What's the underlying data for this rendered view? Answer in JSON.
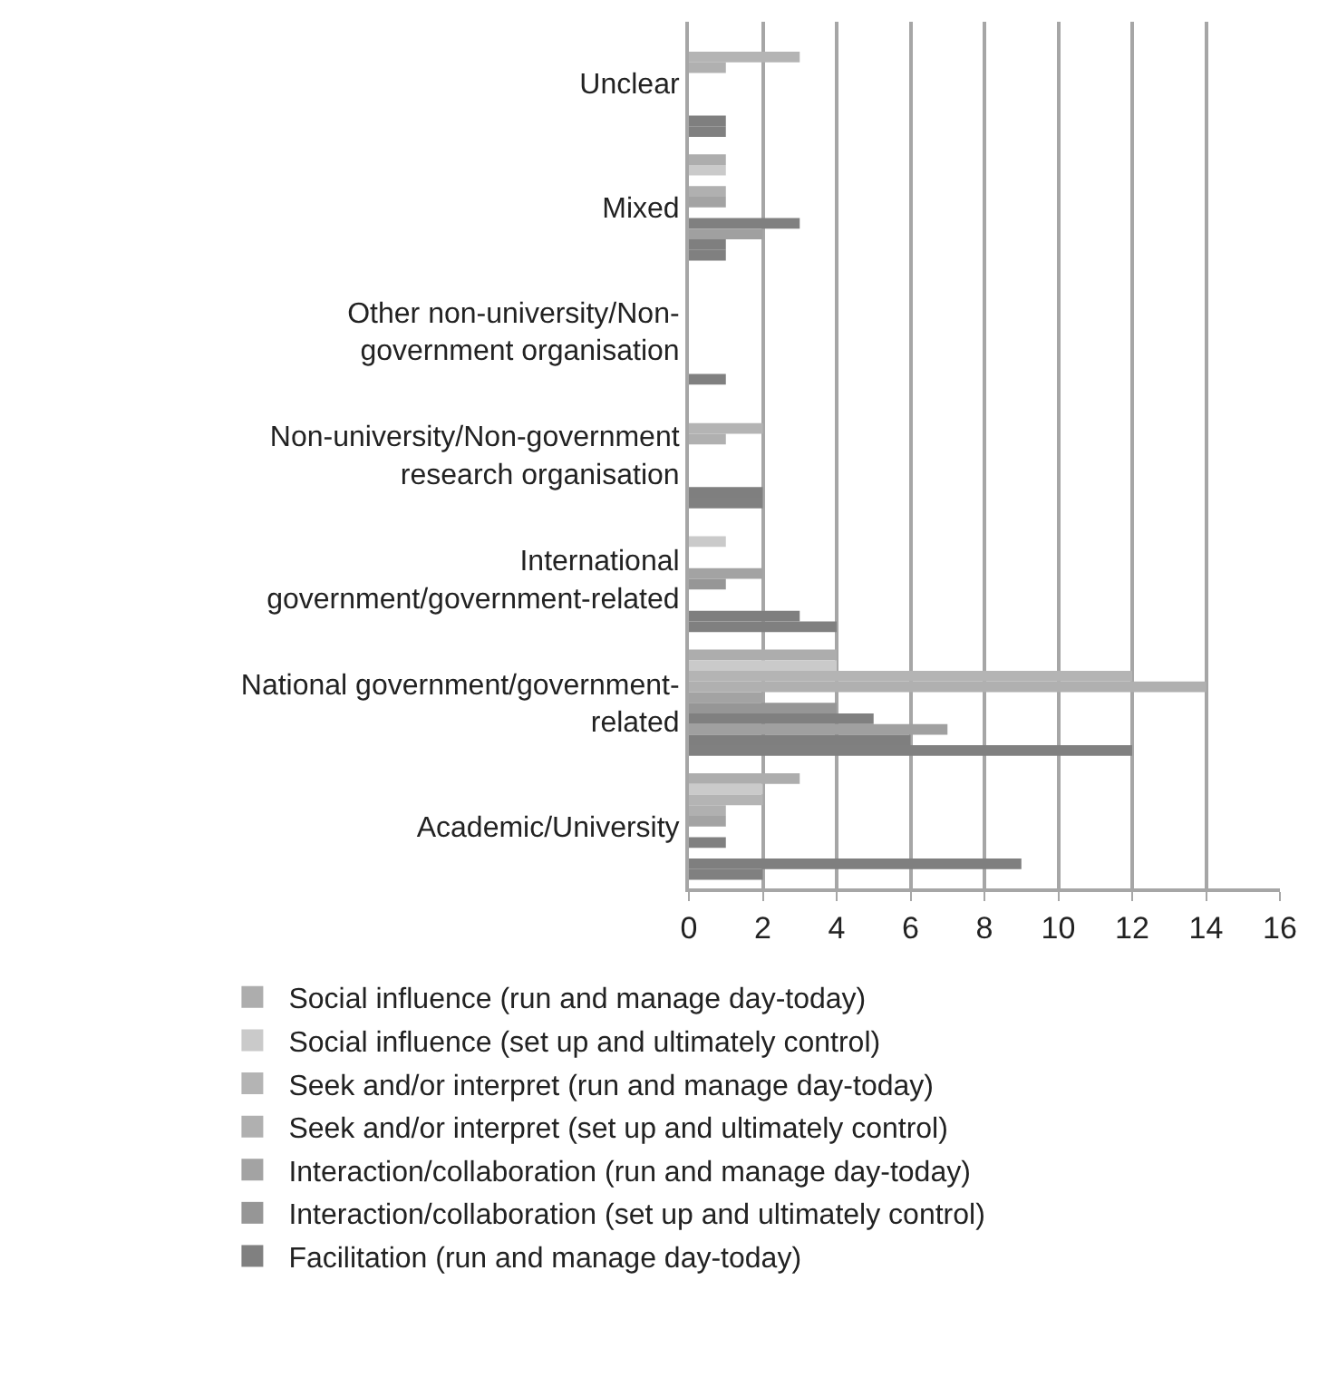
{
  "chart_data": {
    "type": "bar",
    "orientation": "horizontal",
    "categories": [
      "Unclear",
      "Mixed",
      "Other non-university/Non-government organisation",
      "Non-university/Non-government research organisation",
      "International government/government-related",
      "National government/government-related",
      "Academic/University"
    ],
    "series": [
      {
        "name": "Social influence (run and manage day-today)",
        "color": "#adadad",
        "values": [
          0,
          1,
          0,
          0,
          0,
          4,
          3
        ]
      },
      {
        "name": "Social influence (set up and ultimately control)",
        "color": "#cacaca",
        "values": [
          0,
          1,
          0,
          0,
          1,
          4,
          2
        ]
      },
      {
        "name": "Seek and/or interpret (run and manage day-today)",
        "color": "#b4b4b4",
        "values": [
          3,
          0,
          0,
          2,
          0,
          12,
          2
        ]
      },
      {
        "name": "Seek and/or interpret (set up and ultimately control)",
        "color": "#b0b0b0",
        "values": [
          1,
          1,
          0,
          1,
          0,
          14,
          1
        ]
      },
      {
        "name": "Interaction/collaboration (run and manage day-today)",
        "color": "#a3a3a3",
        "values": [
          0,
          1,
          0,
          0,
          2,
          2,
          1
        ]
      },
      {
        "name": "Interaction/collaboration (set up and ultimately control)",
        "color": "#969696",
        "values": [
          0,
          0,
          0,
          0,
          1,
          4,
          0
        ]
      },
      {
        "name": "Facilitation (run and manage day-today)",
        "color": "#808080",
        "values": [
          0,
          3,
          0,
          0,
          0,
          5,
          1
        ]
      },
      {
        "color": "#a0a0a0",
        "values": [
          0,
          2,
          0,
          0,
          0,
          7,
          0
        ]
      },
      {
        "color": "#7f7f7f",
        "values": [
          1,
          1,
          0,
          2,
          3,
          6,
          9
        ]
      },
      {
        "color": "#808080",
        "values": [
          1,
          1,
          1,
          2,
          4,
          12,
          2
        ]
      }
    ],
    "xlim": [
      0,
      16
    ],
    "xticks": [
      0,
      2,
      4,
      6,
      8,
      10,
      12,
      14,
      16
    ],
    "grid": "x",
    "legend": "bottom"
  }
}
